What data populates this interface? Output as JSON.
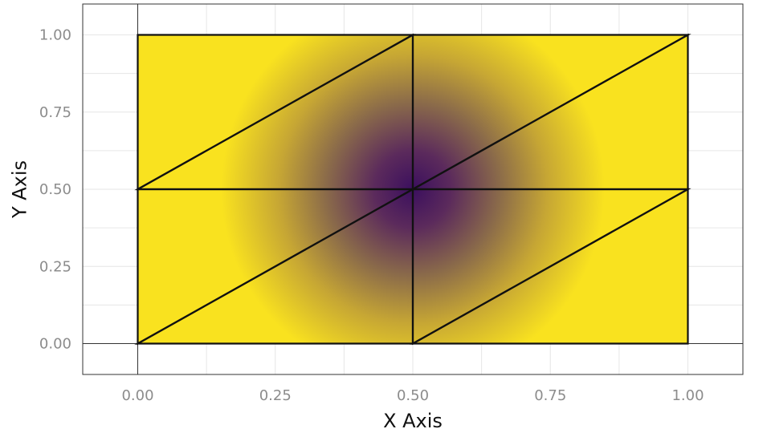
{
  "chart_data": {
    "type": "heatmap",
    "title": "",
    "xlabel": "X Axis",
    "ylabel": "Y Axis",
    "xlim": [
      -0.1,
      1.1
    ],
    "ylim": [
      -0.1,
      1.1
    ],
    "x_ticks": [
      "0.00",
      "0.25",
      "0.50",
      "0.75",
      "1.00"
    ],
    "y_ticks": [
      "0.00",
      "0.25",
      "0.50",
      "0.75",
      "1.00"
    ],
    "x_tick_values": [
      0,
      0.25,
      0.5,
      0.75,
      1.0
    ],
    "y_tick_values": [
      0,
      0.25,
      0.5,
      0.75,
      1.0
    ],
    "grid": true,
    "colormap": "viridis-like (purple to yellow)",
    "colors": {
      "low": "#3b0f5e",
      "mid": "#8a6a4a",
      "high": "#f9e21f"
    },
    "field": "distance from center (0.5, 0.5), clipped",
    "mesh": {
      "vertices": [
        [
          0,
          0
        ],
        [
          0.5,
          0
        ],
        [
          1,
          0
        ],
        [
          0,
          0.5
        ],
        [
          0.5,
          0.5
        ],
        [
          1,
          0.5
        ],
        [
          0,
          1
        ],
        [
          0.5,
          1
        ],
        [
          1,
          1
        ]
      ],
      "triangles": [
        [
          0,
          1,
          4
        ],
        [
          0,
          4,
          3
        ],
        [
          1,
          2,
          5
        ],
        [
          1,
          5,
          4
        ],
        [
          3,
          4,
          7
        ],
        [
          3,
          7,
          6
        ],
        [
          4,
          5,
          8
        ],
        [
          4,
          8,
          7
        ]
      ]
    }
  }
}
